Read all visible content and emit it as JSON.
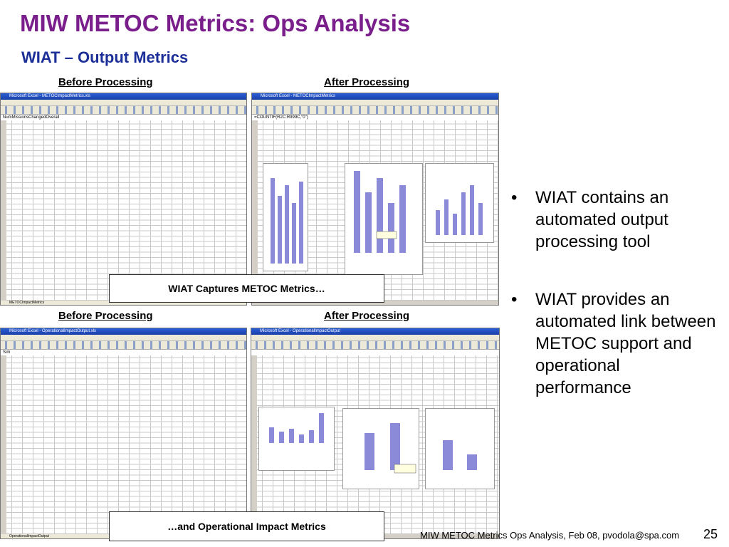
{
  "title": "MIW METOC Metrics:  Ops Analysis",
  "subtitle": "WIAT – Output Metrics",
  "labels": {
    "before_top": "Before Processing",
    "after_top": "After Processing",
    "before_bottom": "Before Processing",
    "after_bottom": "After Processing"
  },
  "callouts": {
    "top": "WIAT Captures METOC Metrics…",
    "bottom": "…and Operational Impact Metrics"
  },
  "bullets": [
    "WIAT contains an automated output processing tool",
    "WIAT provides an automated link between METOC support and operational performance"
  ],
  "bullet_symbol": "•",
  "screenshots": {
    "top_before_title": "Microsoft Excel - METOCImpactMetrics.xls",
    "top_after_title": "Microsoft Excel - METOCImpactMetrics",
    "bottom_before_title": "Microsoft Excel - OperationalImpactOutput.xls",
    "bottom_after_title": "Microsoft Excel - OperationalImpactOutput",
    "top_before_formula": "NumMissionsChangedOverall",
    "top_after_formula": "=COUNTIF(R2C:R999C,\"0\")",
    "bottom_before_formula": "Sim",
    "bottom_after_formula": "",
    "top_before_tab": "METOCImpactMetrics",
    "bottom_before_tab": "OperationalImpactOutput"
  },
  "footer": "MIW METOC Metrics Ops Analysis, Feb 08, pvodola@spa.com",
  "page_number": "25"
}
